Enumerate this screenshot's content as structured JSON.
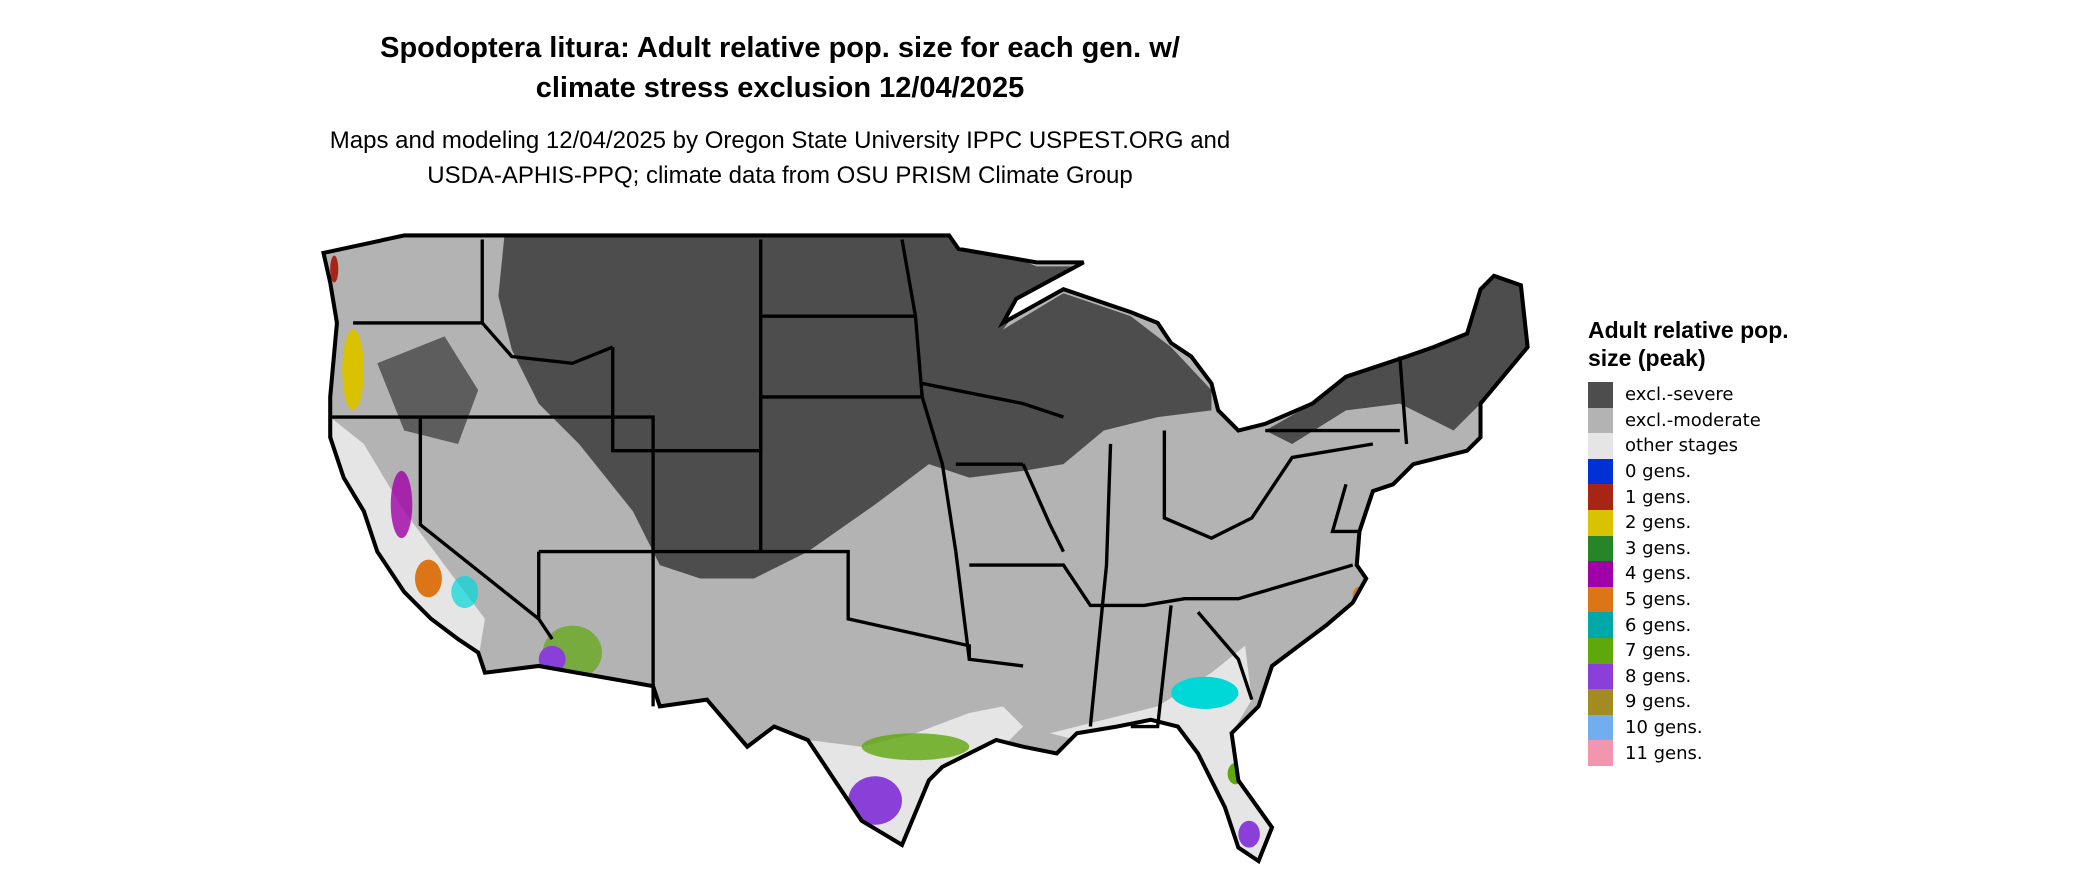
{
  "title": {
    "line1": "Spodoptera litura: Adult relative pop. size for each gen. w/",
    "line2": "climate stress exclusion 12/04/2025"
  },
  "subtitle": {
    "line1": "Maps and modeling 12/04/2025 by Oregon State University IPPC USPEST.ORG and",
    "line2": "USDA-APHIS-PPQ; climate data from OSU PRISM Climate Group"
  },
  "legend": {
    "title": "Adult relative pop. size (peak)",
    "items": [
      {
        "label": "excl.-severe",
        "color": "#4d4d4d"
      },
      {
        "label": "excl.-moderate",
        "color": "#b3b3b3"
      },
      {
        "label": "other stages",
        "color": "#e5e5e5"
      },
      {
        "label": "0 gens.",
        "color": "#0030d8"
      },
      {
        "label": "1 gens.",
        "color": "#a82415"
      },
      {
        "label": "2 gens.",
        "color": "#d9c300"
      },
      {
        "label": "3 gens.",
        "color": "#268526"
      },
      {
        "label": "4 gens.",
        "color": "#a000a8"
      },
      {
        "label": "5 gens.",
        "color": "#dc7516"
      },
      {
        "label": "6 gens.",
        "color": "#00a8a8"
      },
      {
        "label": "7 gens.",
        "color": "#5ea80c"
      },
      {
        "label": "8 gens.",
        "color": "#8a3fd8"
      },
      {
        "label": "9 gens.",
        "color": "#a28c22"
      },
      {
        "label": "10 gens.",
        "color": "#70aef0"
      },
      {
        "label": "11 gens.",
        "color": "#f296b0"
      }
    ]
  }
}
